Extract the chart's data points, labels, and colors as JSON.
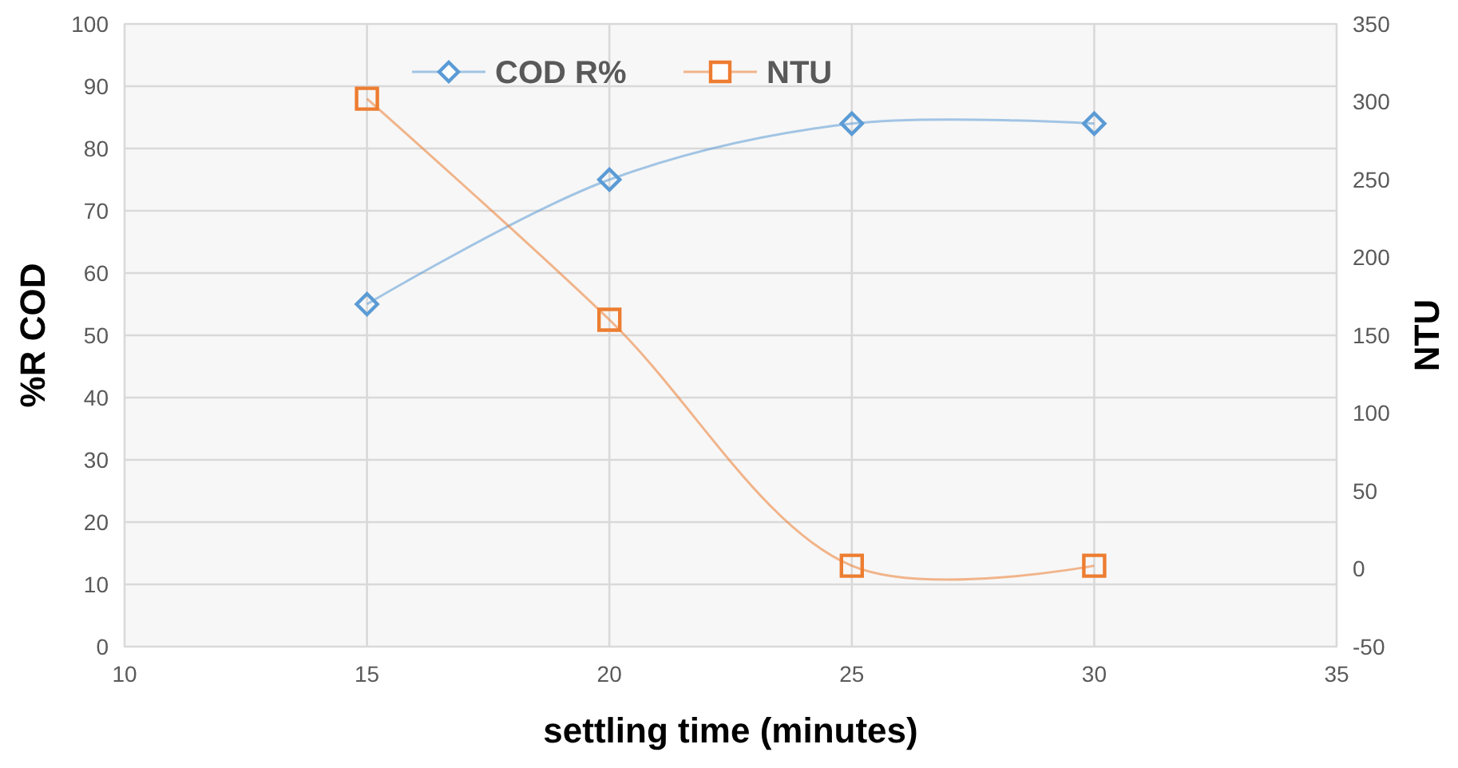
{
  "chart_data": {
    "type": "line",
    "xlabel": "settling time (minutes)",
    "ylabel": "%R COD",
    "y2label": "NTU",
    "x": [
      15,
      20,
      25,
      30
    ],
    "series": [
      {
        "name": "COD R%",
        "color": "#5b9bd5",
        "values": [
          55,
          75,
          84,
          84
        ],
        "marker": "diamond"
      },
      {
        "name": "NTU",
        "color": "#ed7d31",
        "values": [
          302,
          160,
          2,
          2
        ],
        "axis": "y2",
        "marker": "square"
      }
    ],
    "xlim": [
      10,
      35
    ],
    "xticks": [
      10,
      15,
      20,
      25,
      30,
      35
    ],
    "ylim": [
      0,
      100
    ],
    "yticks": [
      0,
      10,
      20,
      30,
      40,
      50,
      60,
      70,
      80,
      90,
      100
    ],
    "y2lim": [
      -50,
      350
    ],
    "y2ticks": [
      -50,
      0,
      50,
      100,
      150,
      200,
      250,
      300,
      350
    ],
    "grid": true,
    "legend": "top"
  }
}
